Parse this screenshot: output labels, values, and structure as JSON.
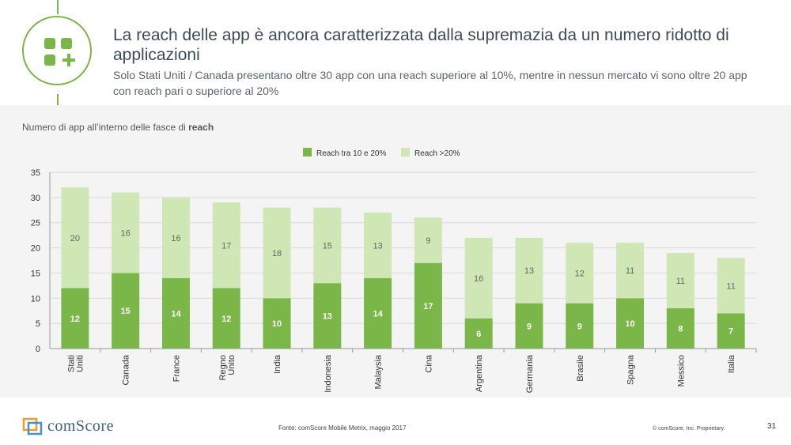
{
  "header": {
    "title": "La reach delle app è ancora caratterizzata dalla supremazia da un numero ridotto di applicazioni",
    "subtitle": "Solo Stati Uniti / Canada presentano oltre 30 app con una reach superiore al 10%, mentre in nessun mercato vi sono oltre 20 app con reach pari o superiore al 20%",
    "icon": "app-grid-plus-icon"
  },
  "chart_heading": {
    "part1": "Numero di app",
    "part2": " all’interno delle fasce di ",
    "part3": "reach"
  },
  "colors": {
    "accent": "#7ab648",
    "series_low": "#7ab648",
    "series_high": "#cfe7b4"
  },
  "chart_data": {
    "type": "bar",
    "stacked": true,
    "categories": [
      "Stati Uniti",
      "Canada",
      "France",
      "Regno Unito",
      "India",
      "Indonesia",
      "Malaysia",
      "Cina",
      "Argentina",
      "Germania",
      "Brasile",
      "Spagna",
      "Messico",
      "Italia"
    ],
    "series": [
      {
        "name": "Reach tra 10 e 20%",
        "values": [
          12,
          15,
          14,
          12,
          10,
          13,
          14,
          17,
          6,
          9,
          9,
          10,
          8,
          7
        ]
      },
      {
        "name": "Reach >20%",
        "values": [
          20,
          16,
          16,
          17,
          18,
          15,
          13,
          9,
          16,
          13,
          12,
          11,
          11,
          11
        ]
      }
    ],
    "ylim": [
      0,
      35
    ],
    "yticks": [
      0,
      5,
      10,
      15,
      20,
      25,
      30,
      35
    ],
    "grid": true,
    "legend_position": "top-center"
  },
  "footer": {
    "brand": "comScore",
    "source": "Fonte: comScore Mobile Metrix, maggio 2017",
    "copyright": "© comScore, Inc. Proprietary.",
    "page": "31"
  }
}
